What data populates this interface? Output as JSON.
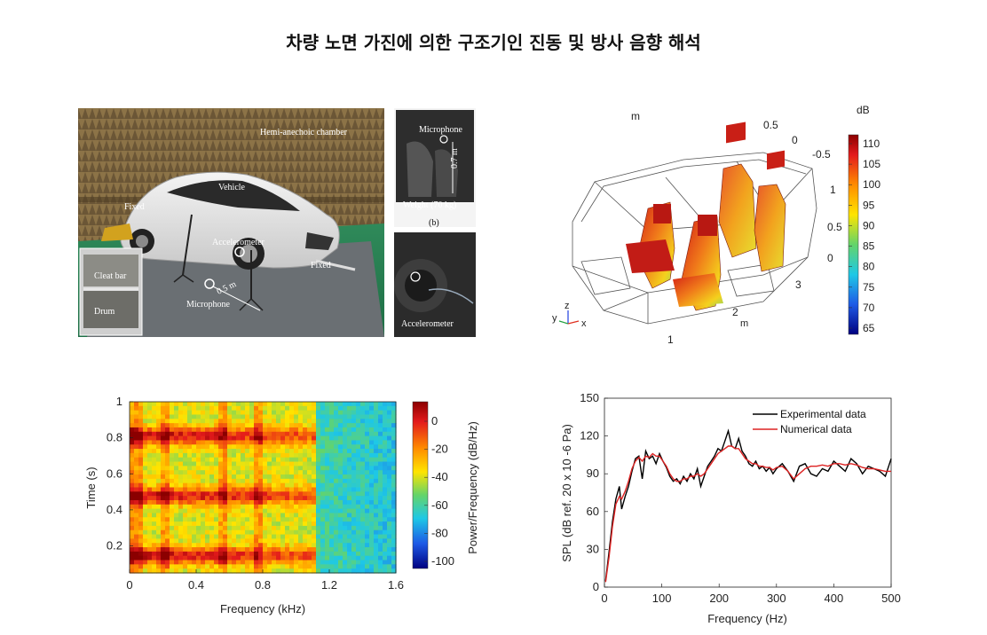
{
  "title": "차량 노면 가진에 의한 구조기인 진동 및 방사 음향 해석",
  "photo": {
    "labels": {
      "chamber": "Hemi-anechoic chamber",
      "vehicle": "Vehicle",
      "fixed_left": "Fixed",
      "fixed_right": "Fixed",
      "accelerometer": "Accelerometer",
      "microphone": "Microphone",
      "distance_main": "0.5 m",
      "cleat_bar": "Cleat bar",
      "drum": "Drum",
      "inset_microphone": "Microphone",
      "height": "0.7 m",
      "weight": "Weight (70 kg)",
      "inset_b": "(b)",
      "inset_accel": "Accelerometer"
    }
  },
  "simulation": {
    "colorbar_title": "dB",
    "colorbar_ticks": [
      "110",
      "105",
      "100",
      "95",
      "90",
      "85",
      "80",
      "75",
      "70",
      "65"
    ],
    "axis_unit": "m",
    "top_ticks": [
      "0.5",
      "0",
      "-0.5"
    ],
    "right_ticks": [
      "1",
      "0.5",
      "0"
    ],
    "bottom_ticks": [
      "1",
      "2",
      "3"
    ],
    "triad": {
      "y": "y",
      "z": "z",
      "x": "x"
    }
  },
  "spectrogram": {
    "xlabel": "Frequency (kHz)",
    "ylabel": "Time (s)",
    "x_ticks": [
      "0",
      "0.4",
      "0.8",
      "1.2",
      "1.6"
    ],
    "y_ticks": [
      "1",
      "0.8",
      "0.6",
      "0.4",
      "0.2"
    ],
    "colorbar_label": "Power/Frequency (dB/Hz)",
    "colorbar_ticks": [
      "0",
      "-20",
      "-40",
      "-60",
      "-80",
      "-100"
    ],
    "colors": {
      "hot": "#c8000a",
      "cold": "#1a3cc8"
    }
  },
  "chart_data": [
    {
      "type": "line",
      "xlabel": "Frequency (Hz)",
      "ylabel": "SPL (dB ref. 20 x 10 -6 Pa)",
      "xlim": [
        0,
        500
      ],
      "ylim": [
        0,
        150
      ],
      "x_ticks": [
        "0",
        "100",
        "200",
        "300",
        "400",
        "500"
      ],
      "y_ticks": [
        "150",
        "120",
        "90",
        "60",
        "30",
        "0"
      ],
      "legend_position": "top-right",
      "series": [
        {
          "name": "Experimental data",
          "color": "#000000",
          "x": [
            2,
            8,
            14,
            20,
            26,
            30,
            36,
            42,
            48,
            54,
            60,
            66,
            72,
            78,
            84,
            90,
            96,
            102,
            108,
            114,
            120,
            126,
            132,
            138,
            144,
            150,
            156,
            162,
            168,
            174,
            180,
            186,
            192,
            198,
            204,
            210,
            216,
            222,
            228,
            234,
            240,
            246,
            252,
            258,
            264,
            270,
            276,
            282,
            288,
            294,
            300,
            310,
            320,
            330,
            340,
            350,
            360,
            370,
            380,
            390,
            400,
            410,
            420,
            430,
            440,
            450,
            460,
            470,
            480,
            490,
            500
          ],
          "values": [
            5,
            28,
            52,
            70,
            80,
            62,
            72,
            80,
            92,
            102,
            104,
            86,
            108,
            102,
            104,
            98,
            106,
            100,
            95,
            88,
            84,
            86,
            82,
            88,
            84,
            90,
            86,
            94,
            80,
            88,
            96,
            100,
            104,
            110,
            108,
            116,
            124,
            112,
            110,
            118,
            108,
            104,
            98,
            96,
            100,
            94,
            96,
            92,
            95,
            90,
            94,
            98,
            92,
            84,
            96,
            98,
            90,
            88,
            94,
            92,
            100,
            96,
            92,
            102,
            98,
            90,
            96,
            94,
            92,
            88,
            102
          ]
        },
        {
          "name": "Numerical data",
          "color": "#dd2222",
          "x": [
            2,
            8,
            14,
            20,
            26,
            30,
            36,
            42,
            48,
            54,
            60,
            66,
            72,
            78,
            84,
            90,
            96,
            102,
            108,
            114,
            120,
            126,
            132,
            138,
            144,
            150,
            156,
            162,
            168,
            174,
            180,
            186,
            192,
            198,
            204,
            210,
            216,
            222,
            228,
            234,
            240,
            246,
            252,
            258,
            264,
            270,
            276,
            282,
            288,
            294,
            300,
            310,
            320,
            330,
            340,
            350,
            360,
            370,
            380,
            390,
            400,
            410,
            420,
            430,
            440,
            450,
            460,
            470,
            480,
            490,
            500
          ],
          "values": [
            4,
            24,
            48,
            66,
            72,
            70,
            76,
            84,
            94,
            100,
            103,
            100,
            104,
            103,
            106,
            104,
            104,
            100,
            96,
            90,
            86,
            84,
            84,
            86,
            86,
            88,
            88,
            90,
            88,
            90,
            94,
            98,
            102,
            106,
            108,
            110,
            112,
            112,
            110,
            110,
            106,
            102,
            100,
            98,
            98,
            96,
            96,
            95,
            95,
            93,
            95,
            96,
            92,
            86,
            90,
            94,
            96,
            96,
            97,
            96,
            98,
            98,
            97,
            98,
            97,
            95,
            94,
            94,
            93,
            92,
            92
          ]
        }
      ]
    }
  ]
}
